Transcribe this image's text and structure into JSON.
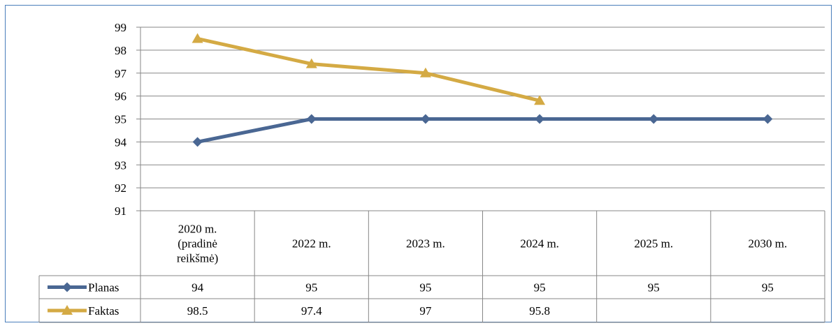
{
  "colors": {
    "planas": "#4a6793",
    "faktas": "#d4aa44",
    "grid": "#878787",
    "frame": "#4a7ebb"
  },
  "chart_data": {
    "type": "line",
    "categories": [
      [
        "2020 m.",
        "(pradinė",
        "reikšmė)"
      ],
      [
        "2022 m."
      ],
      [
        "2023 m."
      ],
      [
        "2024 m."
      ],
      [
        "2025 m."
      ],
      [
        "2030 m."
      ]
    ],
    "ylim": [
      91,
      99
    ],
    "yticks": [
      91,
      92,
      93,
      94,
      95,
      96,
      97,
      98,
      99
    ],
    "grid": true,
    "legend": "data-table",
    "series": [
      {
        "name": "Planas",
        "marker": "diamond",
        "values": [
          94,
          95,
          95,
          95,
          95,
          95
        ],
        "labels": [
          "94",
          "95",
          "95",
          "95",
          "95",
          "95"
        ]
      },
      {
        "name": "Faktas",
        "marker": "triangle",
        "values": [
          98.5,
          97.4,
          97,
          95.8,
          null,
          null
        ],
        "labels": [
          "98.5",
          "97.4",
          "97",
          "95.8",
          "",
          ""
        ]
      }
    ]
  }
}
